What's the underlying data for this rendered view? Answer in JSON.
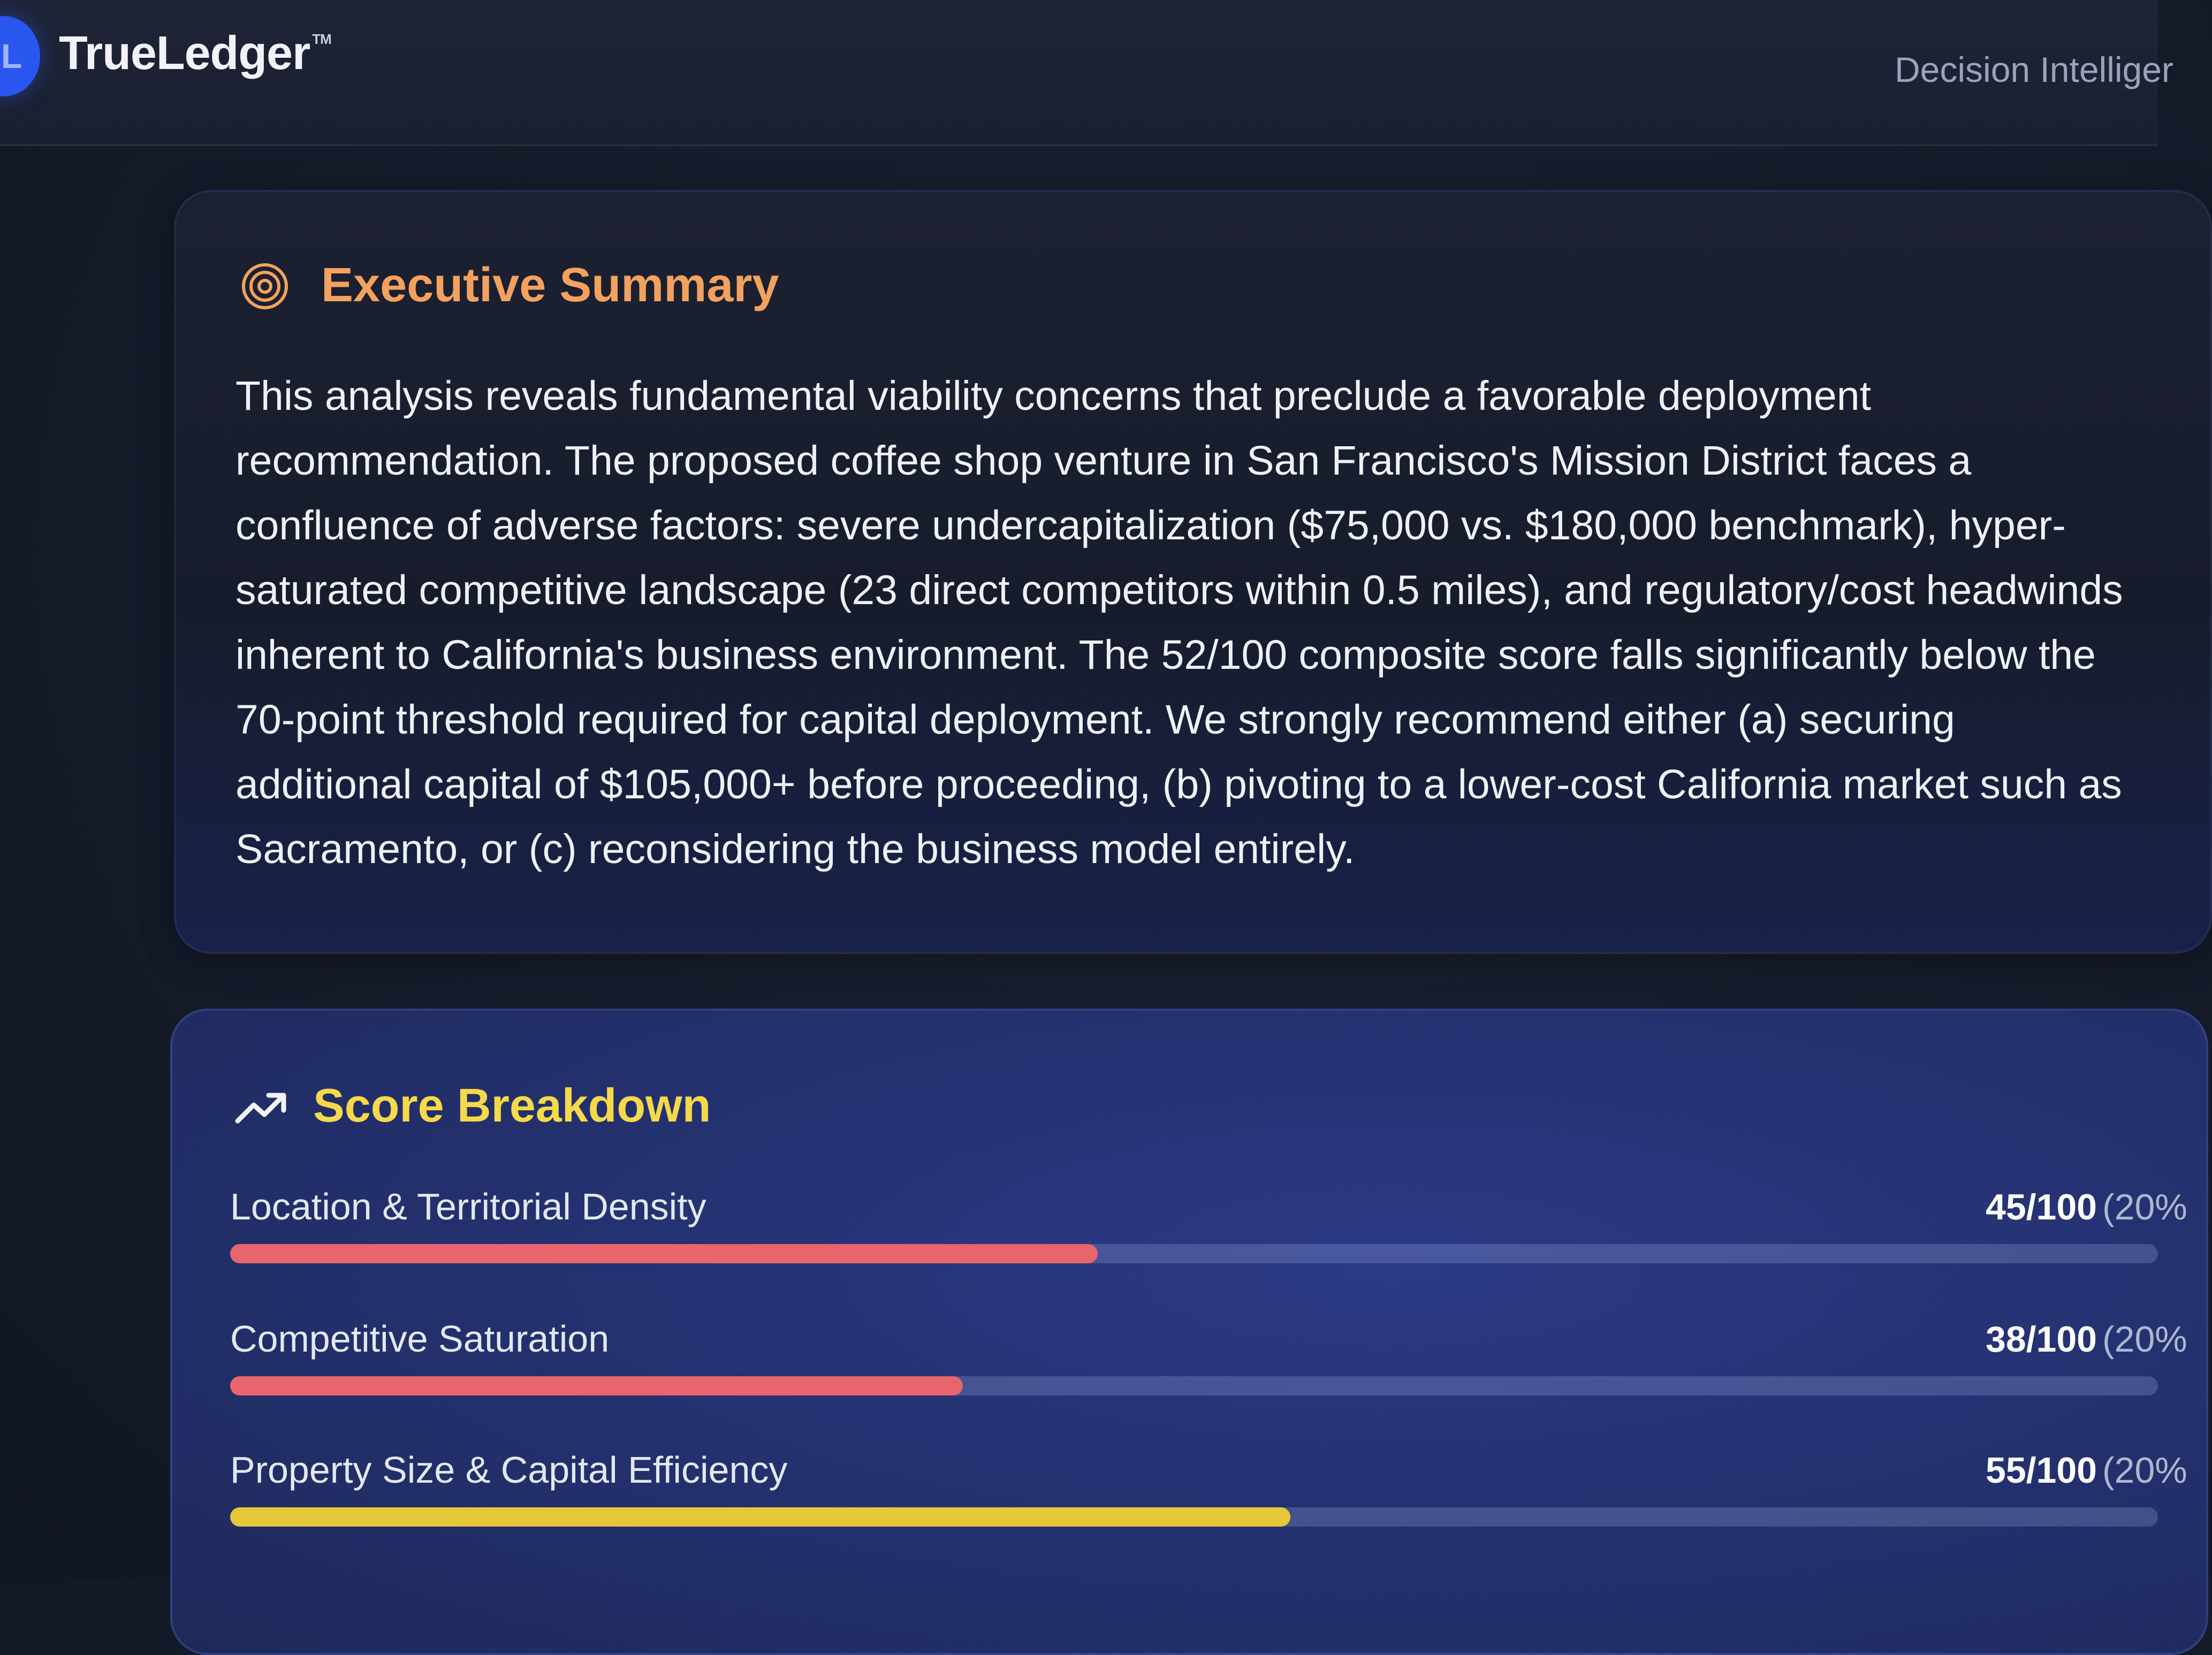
{
  "header": {
    "brand": "TrueLedger",
    "trademark": "TM",
    "tagline": "Decision Intelliger",
    "logo_letter": "L"
  },
  "executive_summary": {
    "icon": "target-icon",
    "title": "Executive Summary",
    "body": "This analysis reveals fundamental viability concerns that preclude a favorable deployment recommendation. The proposed coffee shop venture in San Francisco's Mission District faces a confluence of adverse factors: severe undercapitalization ($75,000 vs. $180,000 benchmark), hyper-saturated competitive landscape (23 direct competitors within 0.5 miles), and regulatory/cost headwinds inherent to California's business environment. The 52/100 composite score falls significantly below the 70-point threshold required for capital deployment. We strongly recommend either (a) securing additional capital of $105,000+ before proceeding, (b) pivoting to a lower-cost California market such as Sacramento, or (c) reconsidering the business model entirely."
  },
  "score_breakdown": {
    "icon": "trending-up-icon",
    "title": "Score Breakdown",
    "items": [
      {
        "label": "Location & Territorial Density",
        "score": "45/100",
        "weight": "(20%",
        "value": 45,
        "color": "#e8656e"
      },
      {
        "label": "Competitive Saturation",
        "score": "38/100",
        "weight": "(20%",
        "value": 38,
        "color": "#e8656e"
      },
      {
        "label": "Property Size & Capital Efficiency",
        "score": "55/100",
        "weight": "(20%",
        "value": 55,
        "color": "#e6c73a"
      }
    ]
  }
}
